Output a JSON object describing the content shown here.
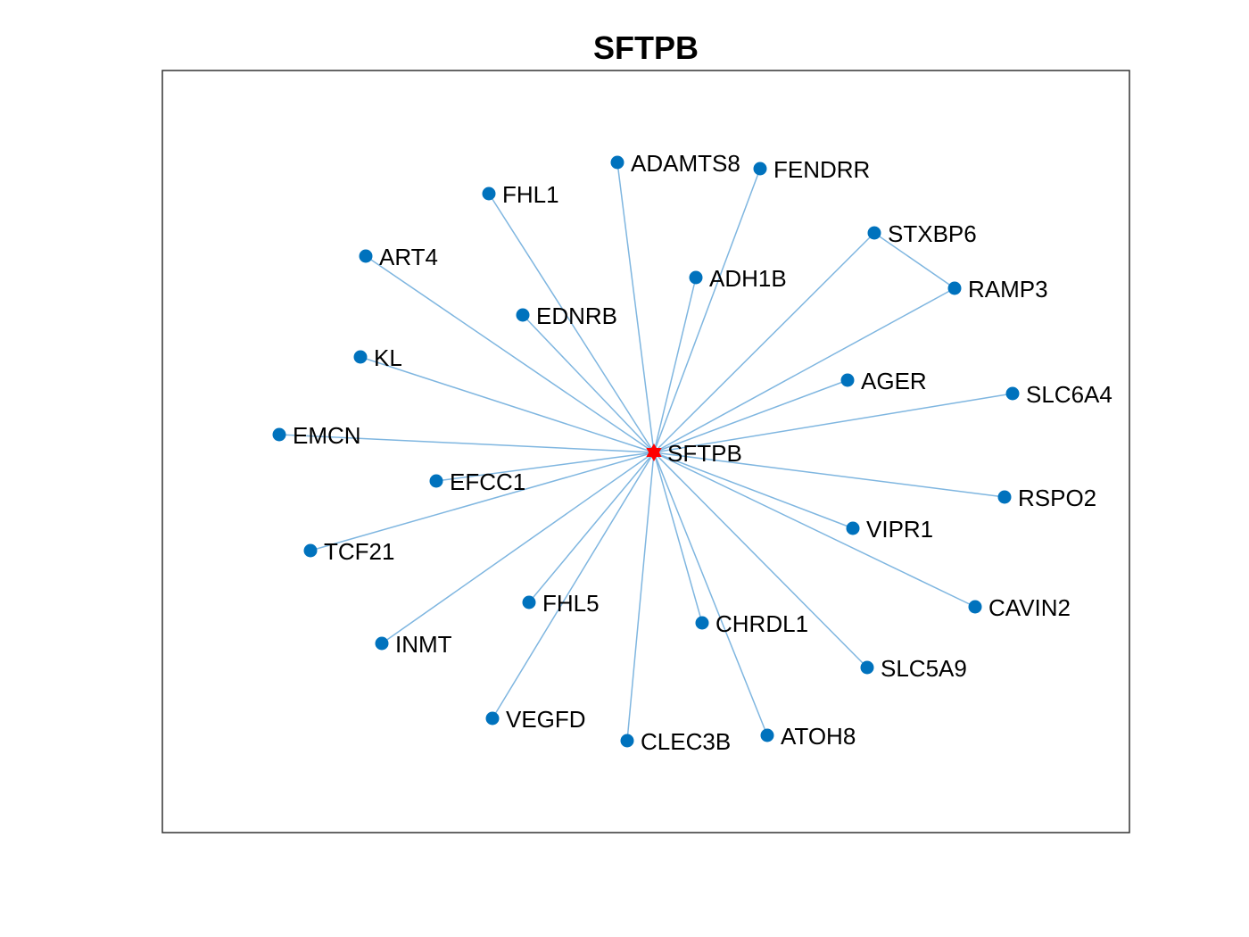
{
  "title": "SFTPB",
  "hub": {
    "id": "SFTPB",
    "color": "#ff0000",
    "marker": "hexagram"
  },
  "node_color": "#0072bd",
  "edge_color": "#7fb6e0",
  "nodes": [
    {
      "id": "SFTPB"
    },
    {
      "id": "ADAMTS8"
    },
    {
      "id": "FENDRR"
    },
    {
      "id": "FHL1"
    },
    {
      "id": "STXBP6"
    },
    {
      "id": "ART4"
    },
    {
      "id": "ADH1B"
    },
    {
      "id": "RAMP3"
    },
    {
      "id": "EDNRB"
    },
    {
      "id": "KL"
    },
    {
      "id": "AGER"
    },
    {
      "id": "SLC6A4"
    },
    {
      "id": "EMCN"
    },
    {
      "id": "EFCC1"
    },
    {
      "id": "RSPO2"
    },
    {
      "id": "VIPR1"
    },
    {
      "id": "TCF21"
    },
    {
      "id": "FHL5"
    },
    {
      "id": "CAVIN2"
    },
    {
      "id": "CHRDL1"
    },
    {
      "id": "INMT"
    },
    {
      "id": "SLC5A9"
    },
    {
      "id": "VEGFD"
    },
    {
      "id": "ATOH8"
    },
    {
      "id": "CLEC3B"
    }
  ],
  "edges": [
    [
      "SFTPB",
      "ADAMTS8"
    ],
    [
      "SFTPB",
      "FENDRR"
    ],
    [
      "SFTPB",
      "FHL1"
    ],
    [
      "SFTPB",
      "STXBP6"
    ],
    [
      "SFTPB",
      "ART4"
    ],
    [
      "SFTPB",
      "ADH1B"
    ],
    [
      "SFTPB",
      "RAMP3"
    ],
    [
      "SFTPB",
      "EDNRB"
    ],
    [
      "SFTPB",
      "KL"
    ],
    [
      "SFTPB",
      "AGER"
    ],
    [
      "SFTPB",
      "SLC6A4"
    ],
    [
      "SFTPB",
      "EMCN"
    ],
    [
      "SFTPB",
      "EFCC1"
    ],
    [
      "SFTPB",
      "RSPO2"
    ],
    [
      "SFTPB",
      "VIPR1"
    ],
    [
      "SFTPB",
      "TCF21"
    ],
    [
      "SFTPB",
      "FHL5"
    ],
    [
      "SFTPB",
      "CAVIN2"
    ],
    [
      "SFTPB",
      "CHRDL1"
    ],
    [
      "SFTPB",
      "INMT"
    ],
    [
      "SFTPB",
      "SLC5A9"
    ],
    [
      "SFTPB",
      "VEGFD"
    ],
    [
      "SFTPB",
      "ATOH8"
    ],
    [
      "SFTPB",
      "CLEC3B"
    ],
    [
      "STXBP6",
      "RAMP3"
    ]
  ]
}
